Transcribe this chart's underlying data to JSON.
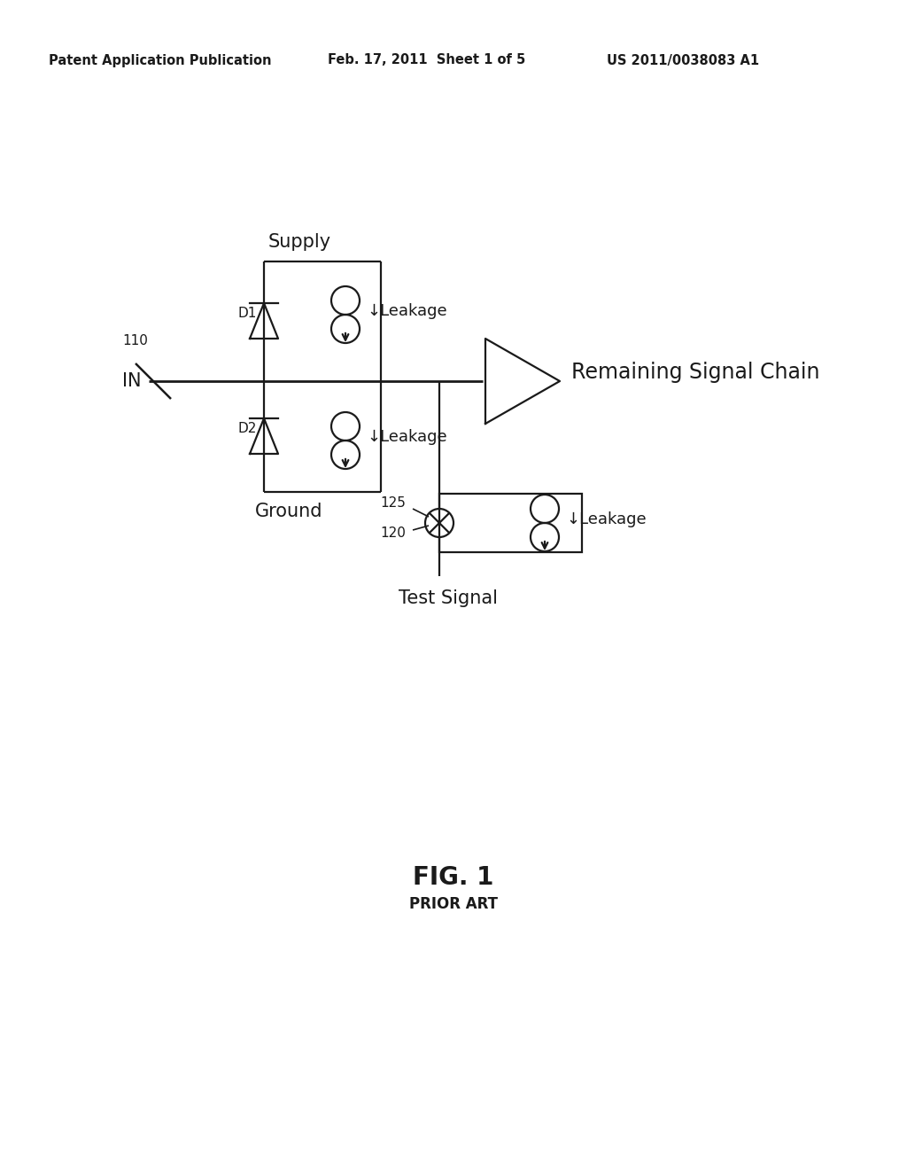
{
  "background_color": "#ffffff",
  "header_left": "Patent Application Publication",
  "header_center": "Feb. 17, 2011  Sheet 1 of 5",
  "header_right": "US 2011/0038083 A1",
  "fig_label": "FIG. 1",
  "fig_sublabel": "PRIOR ART",
  "label_IN": "IN",
  "label_110": "110",
  "label_D1": "D1",
  "label_D2": "D2",
  "label_Supply": "Supply",
  "label_Ground": "Ground",
  "label_Leakage": "Leakage",
  "label_125": "125",
  "label_120": "120",
  "label_TestSignal": "Test Signal",
  "label_RemainingSignalChain": "Remaining Signal Chain",
  "line_color": "#1a1a1a",
  "text_color": "#1a1a1a",
  "lw": 1.6
}
